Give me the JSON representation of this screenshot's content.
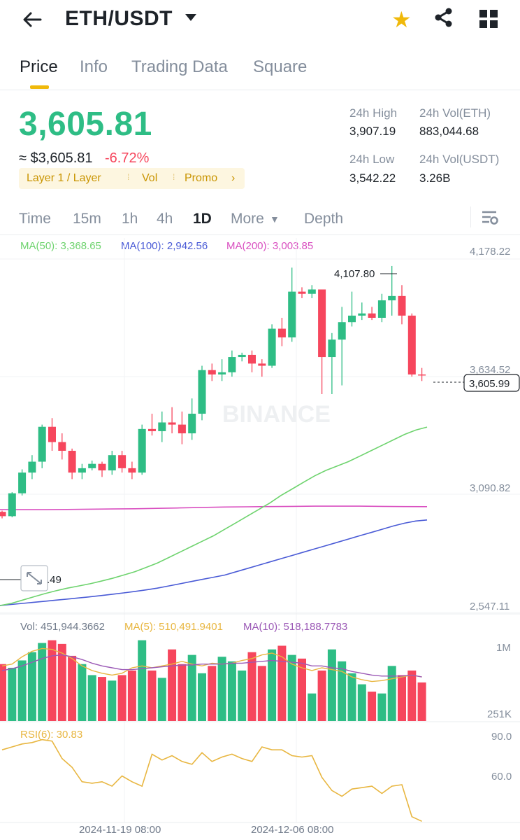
{
  "header": {
    "pair": "ETH/USDT",
    "back_icon": "arrow-left-icon",
    "favorite_icon": "star-icon",
    "share_icon": "share-icon",
    "grid_icon": "grid-icon"
  },
  "tabs": [
    {
      "label": "Price",
      "active": true
    },
    {
      "label": "Info"
    },
    {
      "label": "Trading Data"
    },
    {
      "label": "Square"
    }
  ],
  "ticker": {
    "last_price": "3,605.81",
    "approx": "≈ $3,605.81",
    "change": "-6.72%",
    "tags": [
      "Layer 1 / Layer",
      "Vol",
      "Promo"
    ],
    "high_label": "24h High",
    "high": "3,907.19",
    "low_label": "24h Low",
    "low": "3,542.22",
    "vol_eth_label": "24h Vol(ETH)",
    "vol_eth": "883,044.68",
    "vol_usdt_label": "24h Vol(USDT)",
    "vol_usdt": "3.26B"
  },
  "intervals": [
    "Time",
    "15m",
    "1h",
    "4h",
    "1D",
    "More",
    "Depth"
  ],
  "active_interval": "1D",
  "ma": {
    "ma50": "MA(50): 3,368.65",
    "ma100": "MA(100): 2,942.56",
    "ma200": "MA(200): 3,003.85"
  },
  "price_axis": [
    "4,178.22",
    "3,634.52",
    "3,090.82",
    "2,547.11"
  ],
  "max_label": "4,107.80",
  "min_label_partial": ".49",
  "current_price_tag": "3,605.99",
  "watermark": "BINANCE",
  "volume": {
    "vol": "Vol: 451,944.3662",
    "ma5": "MA(5): 510,491.9401",
    "ma10": "MA(10): 518,188.7783",
    "axis": [
      "1M",
      "251K"
    ]
  },
  "rsi": {
    "label": "RSI(6): 30.83",
    "axis": [
      "90.0",
      "60.0"
    ]
  },
  "dates": [
    "2024-11-19 08:00",
    "2024-12-06 08:00"
  ],
  "colors": {
    "up": "#2ebd85",
    "down": "#f6465d",
    "brand": "#f0b90b",
    "ma50": "#6ed36e",
    "ma100": "#4a5bd6",
    "ma200": "#d94fc0",
    "rsi": "#e8b640"
  },
  "chart_data": {
    "type": "candlestick",
    "ylim": [
      2547.11,
      4178.22
    ],
    "candles": [
      [
        2980,
        2960,
        2985,
        2950
      ],
      [
        2960,
        3065,
        3070,
        2955
      ],
      [
        3065,
        3160,
        3175,
        3055
      ],
      [
        3160,
        3210,
        3240,
        3130
      ],
      [
        3210,
        3370,
        3380,
        3180
      ],
      [
        3370,
        3300,
        3410,
        3260
      ],
      [
        3300,
        3260,
        3340,
        3220
      ],
      [
        3260,
        3160,
        3270,
        3130
      ],
      [
        3160,
        3180,
        3200,
        3130
      ],
      [
        3180,
        3200,
        3215,
        3170
      ],
      [
        3200,
        3170,
        3210,
        3140
      ],
      [
        3170,
        3240,
        3260,
        3150
      ],
      [
        3240,
        3180,
        3260,
        3160
      ],
      [
        3180,
        3160,
        3210,
        3130
      ],
      [
        3160,
        3360,
        3380,
        3150
      ],
      [
        3360,
        3350,
        3430,
        3330
      ],
      [
        3350,
        3390,
        3440,
        3300
      ],
      [
        3390,
        3380,
        3460,
        3340
      ],
      [
        3380,
        3340,
        3440,
        3290
      ],
      [
        3340,
        3430,
        3500,
        3310
      ],
      [
        3430,
        3630,
        3650,
        3400
      ],
      [
        3630,
        3610,
        3660,
        3580
      ],
      [
        3610,
        3620,
        3680,
        3580
      ],
      [
        3620,
        3690,
        3720,
        3600
      ],
      [
        3690,
        3700,
        3710,
        3670
      ],
      [
        3700,
        3660,
        3720,
        3620
      ],
      [
        3660,
        3650,
        3680,
        3600
      ],
      [
        3650,
        3820,
        3840,
        3640
      ],
      [
        3820,
        3780,
        3870,
        3740
      ],
      [
        3780,
        3990,
        4100,
        3760
      ],
      [
        3990,
        3980,
        4010,
        3960
      ],
      [
        3980,
        4000,
        4020,
        3960
      ],
      [
        4000,
        3690,
        4000,
        3520
      ],
      [
        3690,
        3770,
        3800,
        3520
      ],
      [
        3770,
        3850,
        3920,
        3560
      ],
      [
        3850,
        3880,
        3990,
        3830
      ],
      [
        3880,
        3890,
        3940,
        3860
      ],
      [
        3890,
        3870,
        3920,
        3860
      ],
      [
        3870,
        3950,
        3980,
        3850
      ],
      [
        3950,
        3970,
        4107.8,
        3880
      ],
      [
        3970,
        3880,
        4020,
        3840
      ],
      [
        3880,
        3610,
        3890,
        3600
      ],
      [
        3610,
        3605.99,
        3640,
        3580
      ]
    ],
    "ma50": [
      2550,
      2560,
      2575,
      2590,
      2605,
      2618,
      2630,
      2640,
      2650,
      2662,
      2675,
      2690,
      2705,
      2725,
      2745,
      2770,
      2795,
      2820,
      2845,
      2870,
      2900,
      2930,
      2960,
      2990,
      3020,
      3055,
      3085,
      3115,
      3145,
      3170,
      3190,
      3210,
      3235,
      3260,
      3285,
      3310,
      3335,
      3355,
      3368.65
    ],
    "ma100": [
      2550,
      2555,
      2560,
      2565,
      2570,
      2575,
      2580,
      2585,
      2590,
      2596,
      2602,
      2608,
      2615,
      2622,
      2630,
      2640,
      2650,
      2660,
      2670,
      2680,
      2690,
      2705,
      2720,
      2735,
      2750,
      2765,
      2780,
      2795,
      2810,
      2825,
      2840,
      2855,
      2870,
      2885,
      2900,
      2915,
      2928,
      2938,
      2942.56
    ],
    "ma200": [
      2990,
      2990,
      2990,
      2991,
      2992,
      2993,
      2994,
      2996,
      2998,
      3000,
      3002,
      3003,
      3004,
      3005,
      3006,
      3006,
      3006,
      3005,
      3004,
      3003.85
    ],
    "volume": [
      0.62,
      0.58,
      0.66,
      0.75,
      0.85,
      0.88,
      0.84,
      0.71,
      0.62,
      0.5,
      0.48,
      0.44,
      0.5,
      0.55,
      0.88,
      0.55,
      0.47,
      0.78,
      0.62,
      0.72,
      0.52,
      0.6,
      0.7,
      0.65,
      0.55,
      0.75,
      0.6,
      0.78,
      0.82,
      0.72,
      0.68,
      0.3,
      0.55,
      0.78,
      0.65,
      0.52,
      0.4,
      0.32,
      0.3,
      0.6,
      0.5,
      0.55,
      0.42
    ],
    "ma5_vol": [
      0.6,
      0.62,
      0.7,
      0.76,
      0.79,
      0.78,
      0.74,
      0.68,
      0.6,
      0.55,
      0.52,
      0.5,
      0.52,
      0.58,
      0.6,
      0.58,
      0.6,
      0.62,
      0.65,
      0.62,
      0.6,
      0.63,
      0.62,
      0.63,
      0.66,
      0.68,
      0.72,
      0.74,
      0.7,
      0.62,
      0.58,
      0.55,
      0.58,
      0.56,
      0.54,
      0.48,
      0.45,
      0.43,
      0.44,
      0.46,
      0.48,
      0.5,
      0.48
    ],
    "ma10_vol": [
      0.55,
      0.57,
      0.6,
      0.64,
      0.68,
      0.71,
      0.72,
      0.7,
      0.67,
      0.63,
      0.6,
      0.58,
      0.56,
      0.56,
      0.57,
      0.58,
      0.59,
      0.6,
      0.61,
      0.61,
      0.62,
      0.62,
      0.62,
      0.63,
      0.63,
      0.64,
      0.65,
      0.66,
      0.65,
      0.64,
      0.63,
      0.6,
      0.6,
      0.58,
      0.57,
      0.54,
      0.52,
      0.5,
      0.49,
      0.49,
      0.49,
      0.5,
      0.48
    ],
    "rsi": [
      80,
      82,
      84,
      85,
      87,
      86,
      74,
      68,
      58,
      57,
      58,
      55,
      62,
      58,
      55,
      77,
      73,
      76,
      72,
      70,
      78,
      72,
      75,
      77,
      74,
      72,
      82,
      80,
      80,
      76,
      75,
      76,
      61,
      52,
      48,
      53,
      54,
      55,
      50,
      55,
      56,
      34,
      30.83
    ],
    "rsi_range": [
      30,
      95
    ]
  }
}
